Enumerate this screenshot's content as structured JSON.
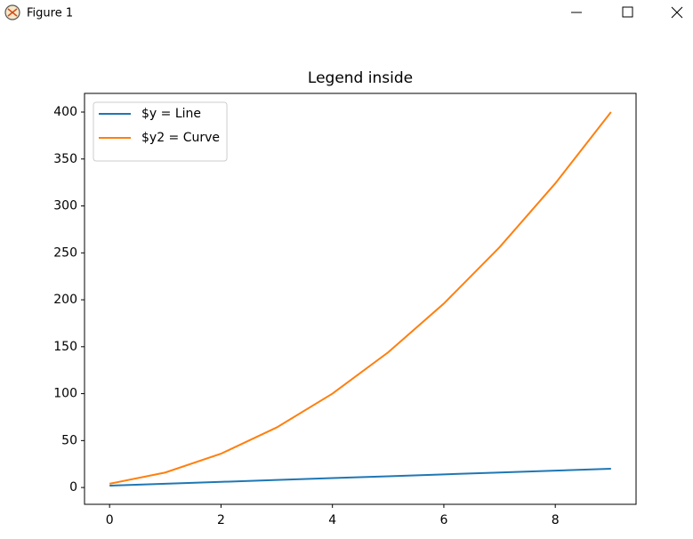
{
  "window": {
    "title": "Figure 1"
  },
  "chart_data": {
    "type": "line",
    "title": "Legend inside",
    "x": [
      0,
      1,
      2,
      3,
      4,
      5,
      6,
      7,
      8,
      9
    ],
    "series": [
      {
        "name": "$y = Line",
        "color": "#1f77b4",
        "values": [
          2,
          4,
          6,
          8,
          10,
          12,
          14,
          16,
          18,
          20
        ]
      },
      {
        "name": "$y2 = Curve",
        "color": "#ff7f0e",
        "values": [
          4,
          16,
          36,
          64,
          100,
          144,
          196,
          256,
          324,
          400
        ]
      }
    ],
    "xlim": [
      -0.45,
      9.45
    ],
    "xticks": [
      0,
      2,
      4,
      6,
      8
    ],
    "ylim": [
      -17.9,
      419.9
    ],
    "yticks": [
      0,
      50,
      100,
      150,
      200,
      250,
      300,
      350,
      400
    ],
    "grid": false,
    "legend": "upper left"
  }
}
